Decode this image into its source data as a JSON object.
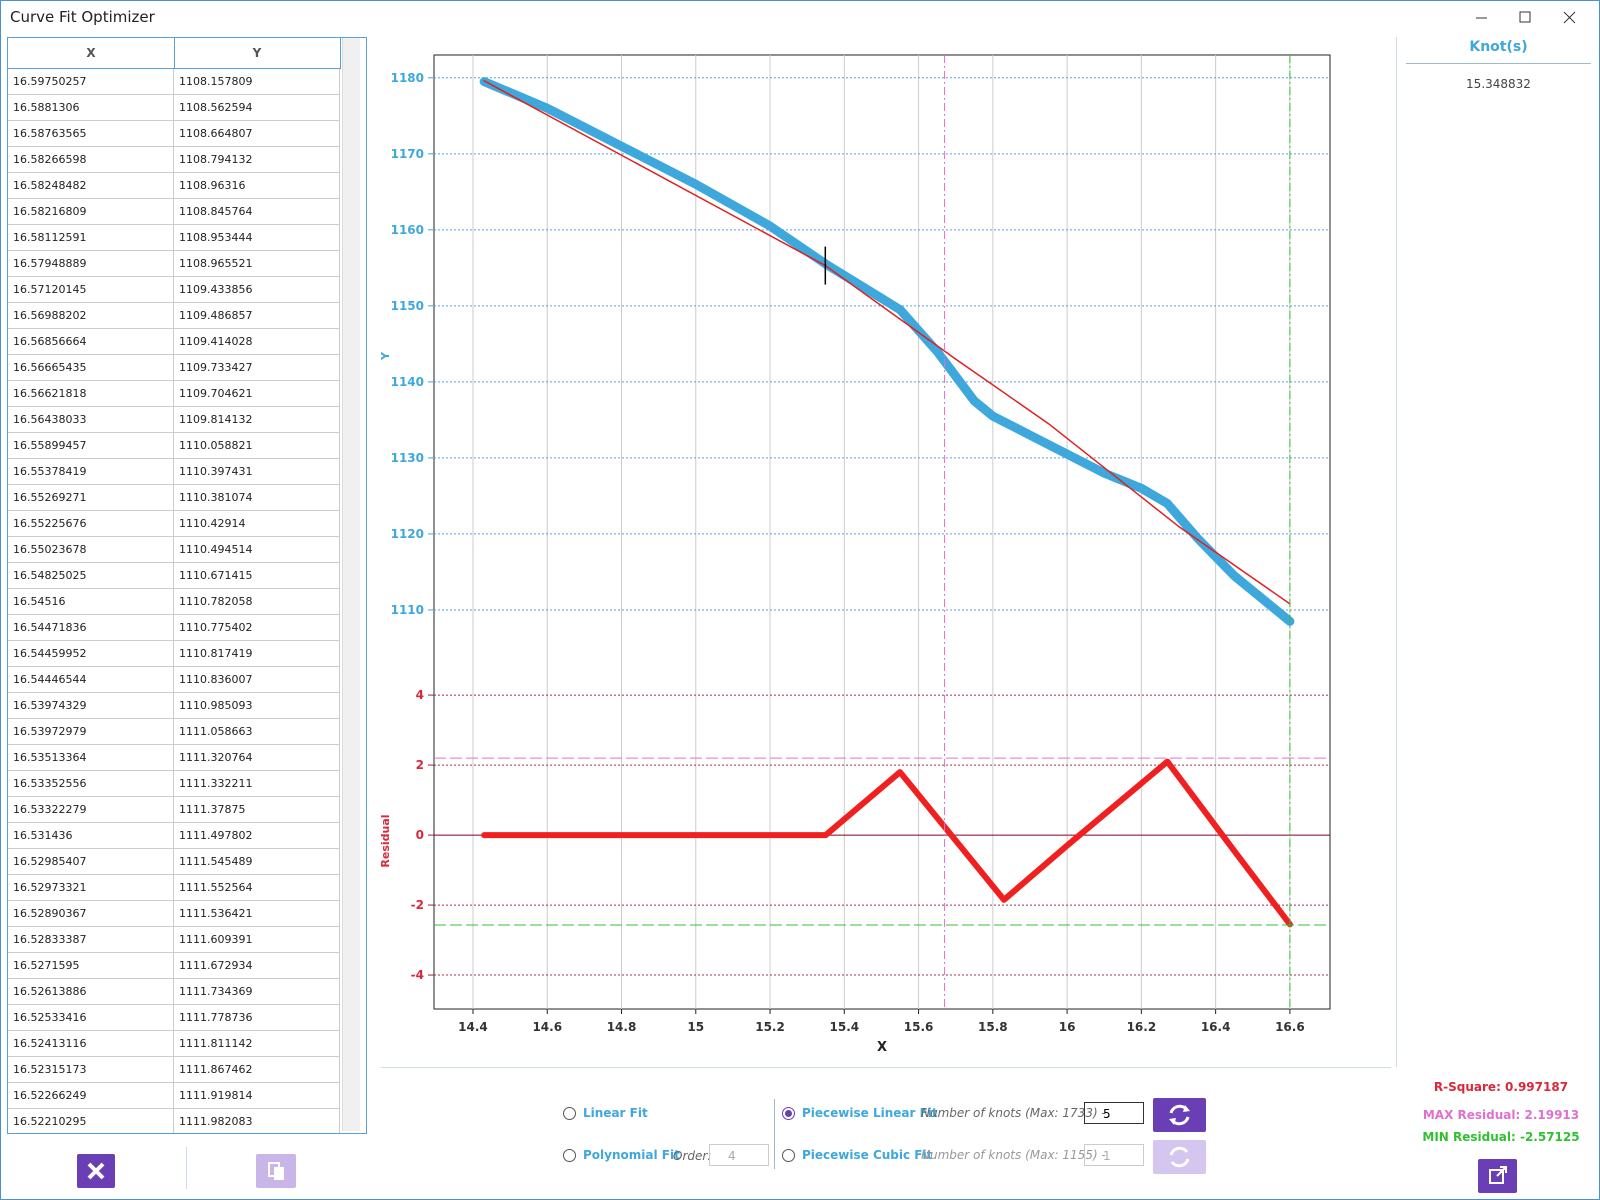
{
  "window": {
    "title": "Curve Fit Optimizer"
  },
  "table": {
    "headers": [
      "X",
      "Y"
    ],
    "rows": [
      [
        "16.59750257",
        "1108.157809"
      ],
      [
        "16.5881306",
        "1108.562594"
      ],
      [
        "16.58763565",
        "1108.664807"
      ],
      [
        "16.58266598",
        "1108.794132"
      ],
      [
        "16.58248482",
        "1108.96316"
      ],
      [
        "16.58216809",
        "1108.845764"
      ],
      [
        "16.58112591",
        "1108.953444"
      ],
      [
        "16.57948889",
        "1108.965521"
      ],
      [
        "16.57120145",
        "1109.433856"
      ],
      [
        "16.56988202",
        "1109.486857"
      ],
      [
        "16.56856664",
        "1109.414028"
      ],
      [
        "16.56665435",
        "1109.733427"
      ],
      [
        "16.56621818",
        "1109.704621"
      ],
      [
        "16.56438033",
        "1109.814132"
      ],
      [
        "16.55899457",
        "1110.058821"
      ],
      [
        "16.55378419",
        "1110.397431"
      ],
      [
        "16.55269271",
        "1110.381074"
      ],
      [
        "16.55225676",
        "1110.42914"
      ],
      [
        "16.55023678",
        "1110.494514"
      ],
      [
        "16.54825025",
        "1110.671415"
      ],
      [
        "16.54516",
        "1110.782058"
      ],
      [
        "16.54471836",
        "1110.775402"
      ],
      [
        "16.54459952",
        "1110.817419"
      ],
      [
        "16.54446544",
        "1110.836007"
      ],
      [
        "16.53974329",
        "1110.985093"
      ],
      [
        "16.53972979",
        "1111.058663"
      ],
      [
        "16.53513364",
        "1111.320764"
      ],
      [
        "16.53352556",
        "1111.332211"
      ],
      [
        "16.53322279",
        "1111.37875"
      ],
      [
        "16.531436",
        "1111.497802"
      ],
      [
        "16.52985407",
        "1111.545489"
      ],
      [
        "16.52973321",
        "1111.552564"
      ],
      [
        "16.52890367",
        "1111.536421"
      ],
      [
        "16.52833387",
        "1111.609391"
      ],
      [
        "16.5271595",
        "1111.672934"
      ],
      [
        "16.52613886",
        "1111.734369"
      ],
      [
        "16.52533416",
        "1111.778736"
      ],
      [
        "16.52413116",
        "1111.811142"
      ],
      [
        "16.52315173",
        "1111.867462"
      ],
      [
        "16.52266249",
        "1111.919814"
      ],
      [
        "16.52210295",
        "1111.982083"
      ]
    ]
  },
  "plot": {
    "xlabel": "X",
    "xlim": [
      14.295,
      16.708
    ],
    "xticks": [
      14.4,
      14.6,
      14.8,
      15,
      15.2,
      15.4,
      15.6,
      15.8,
      16,
      16.2,
      16.4,
      16.6
    ],
    "top": {
      "ylabel": "Y",
      "ylim": [
        1104.6,
        1183
      ],
      "yticks": [
        1110,
        1120,
        1130,
        1140,
        1150,
        1160,
        1170,
        1180
      ],
      "data": {
        "color": "#3ea8dc",
        "x": [
          14.43,
          14.6,
          14.8,
          15.0,
          15.2,
          15.35,
          15.5,
          15.55,
          15.65,
          15.75,
          15.8,
          15.9,
          16.0,
          16.1,
          16.2,
          16.27,
          16.35,
          16.45,
          16.55,
          16.6
        ],
        "y": [
          1179.5,
          1176,
          1171,
          1166,
          1160.5,
          1155.5,
          1151,
          1149.5,
          1144,
          1137.5,
          1135.5,
          1133,
          1130.5,
          1128,
          1126,
          1124,
          1119.5,
          1114.5,
          1110.5,
          1108.5
        ]
      },
      "fit": {
        "color": "#e02020",
        "x": [
          14.43,
          15.349,
          15.7,
          15.95,
          16.3,
          16.6
        ],
        "y": [
          1179.6,
          1155.3,
          1143,
          1134.5,
          1121,
          1110.8
        ]
      },
      "knot_marker": {
        "x": 15.348832,
        "y": 1155.3
      }
    },
    "bottom": {
      "ylabel": "Residual",
      "ylim": [
        -4.97,
        5.26
      ],
      "yticks": [
        -4,
        -2,
        0,
        2,
        4
      ],
      "residual": {
        "color": "#f02020",
        "x": [
          14.43,
          14.6,
          15.0,
          15.35,
          15.55,
          15.83,
          16.0,
          16.27,
          16.45,
          16.6
        ],
        "y": [
          0,
          0,
          0,
          0,
          1.8,
          -1.85,
          -0.3,
          2.1,
          -0.45,
          -2.55
        ]
      }
    },
    "max_line": {
      "x": 15.67,
      "y": 2.19913,
      "color": "#e070d0"
    },
    "min_line": {
      "x": 16.6,
      "y": -2.57125,
      "color": "#30c030"
    }
  },
  "knots": {
    "header": "Knot(s)",
    "values": [
      "15.348832"
    ]
  },
  "controls": {
    "linear": "Linear Fit",
    "polynomial": "Polynomial Fit",
    "order_label": "Order:",
    "order_value": "4",
    "piecewise_linear": "Piecewise Linear Fit",
    "pl_knots_label": "Number of knots (Max: 1733) -",
    "pl_knots_value": "5",
    "piecewise_cubic": "Piecewise Cubic Fit",
    "pc_knots_label": "Number of knots (Max: 1155) -",
    "pc_knots_value": "1"
  },
  "stats": {
    "r_square": "R-Square: 0.997187",
    "max_residual": "MAX Residual: 2.19913",
    "min_residual": "MIN Residual: -2.57125"
  }
}
